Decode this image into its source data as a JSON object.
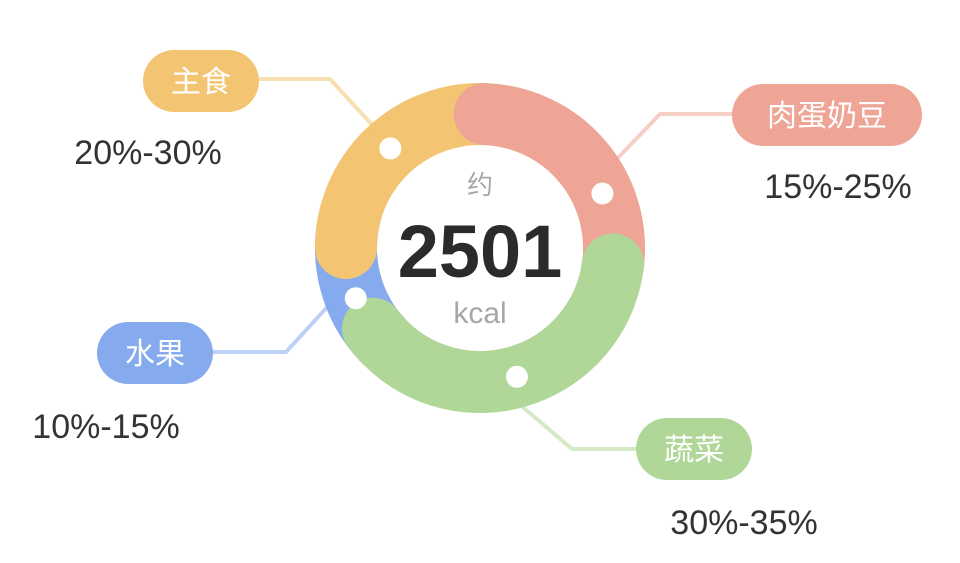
{
  "chart_data": {
    "type": "donut",
    "center": {
      "prefix": "约",
      "value": "2501",
      "unit": "kcal"
    },
    "segments": [
      {
        "name": "主食",
        "range": "20%-30%",
        "color": "#f3c572"
      },
      {
        "name": "肉蛋奶豆",
        "range": "15%-25%",
        "color": "#eea595"
      },
      {
        "name": "蔬菜",
        "range": "30%-35%",
        "color": "#b0d797"
      },
      {
        "name": "水果",
        "range": "10%-15%",
        "color": "#86aaee"
      }
    ]
  }
}
